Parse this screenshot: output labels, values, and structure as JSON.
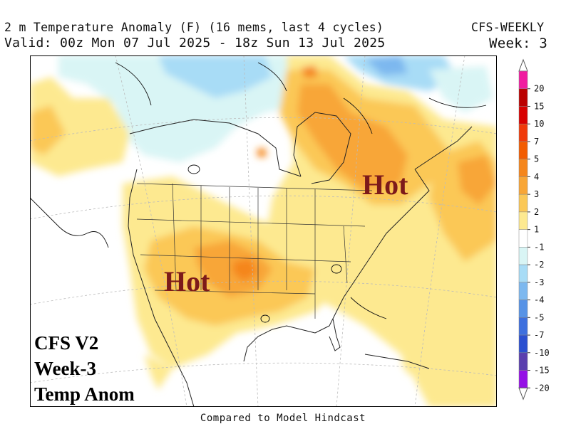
{
  "header": {
    "title_line1": "2 m Temperature Anomaly (F) (16 mems, last 4 cycles)",
    "title_line2": "Valid: 00z Mon 07 Jul 2025 - 18z Sun 13 Jul 2025",
    "model": "CFS-WEEKLY",
    "week": "Week: 3"
  },
  "annotations": {
    "hot_west": "Hot",
    "hot_east": "Hot",
    "label_line1": "CFS V2",
    "label_line2": "Week-3",
    "label_line3": "Temp Anom"
  },
  "footer": {
    "text": "Compared to Model Hindcast"
  },
  "legend": {
    "ticks": [
      {
        "label": "20",
        "color": "#f01ca0"
      },
      {
        "label": "15",
        "color": "#bb0000"
      },
      {
        "label": "10",
        "color": "#d80000"
      },
      {
        "label": "7",
        "color": "#f03a0a"
      },
      {
        "label": "5",
        "color": "#f25c00"
      },
      {
        "label": "4",
        "color": "#f5861c"
      },
      {
        "label": "3",
        "color": "#f8a637"
      },
      {
        "label": "2",
        "color": "#fbc857"
      },
      {
        "label": "1",
        "color": "#fde990"
      },
      {
        "label": "-1",
        "color": "#ffffff"
      },
      {
        "label": "-2",
        "color": "#d9f5f5"
      },
      {
        "label": "-3",
        "color": "#a8dcf6"
      },
      {
        "label": "-4",
        "color": "#7db8ef"
      },
      {
        "label": "-5",
        "color": "#5793e6"
      },
      {
        "label": "-7",
        "color": "#3d6fde"
      },
      {
        "label": "-10",
        "color": "#2a4fd0"
      },
      {
        "label": "-15",
        "color": "#5a3fae"
      },
      {
        "label": "-20",
        "color": "#9510e6"
      }
    ]
  },
  "colors": {
    "warm_light": "#fde990",
    "warm_mid": "#fbc857",
    "warm_strong": "#f8a637",
    "warm_hot": "#f5861c",
    "cool_light": "#d9f5f5",
    "cool_mid": "#a8dcf6",
    "cool_strong": "#7db8ef",
    "annotation_hot": "#7d1a1a"
  }
}
